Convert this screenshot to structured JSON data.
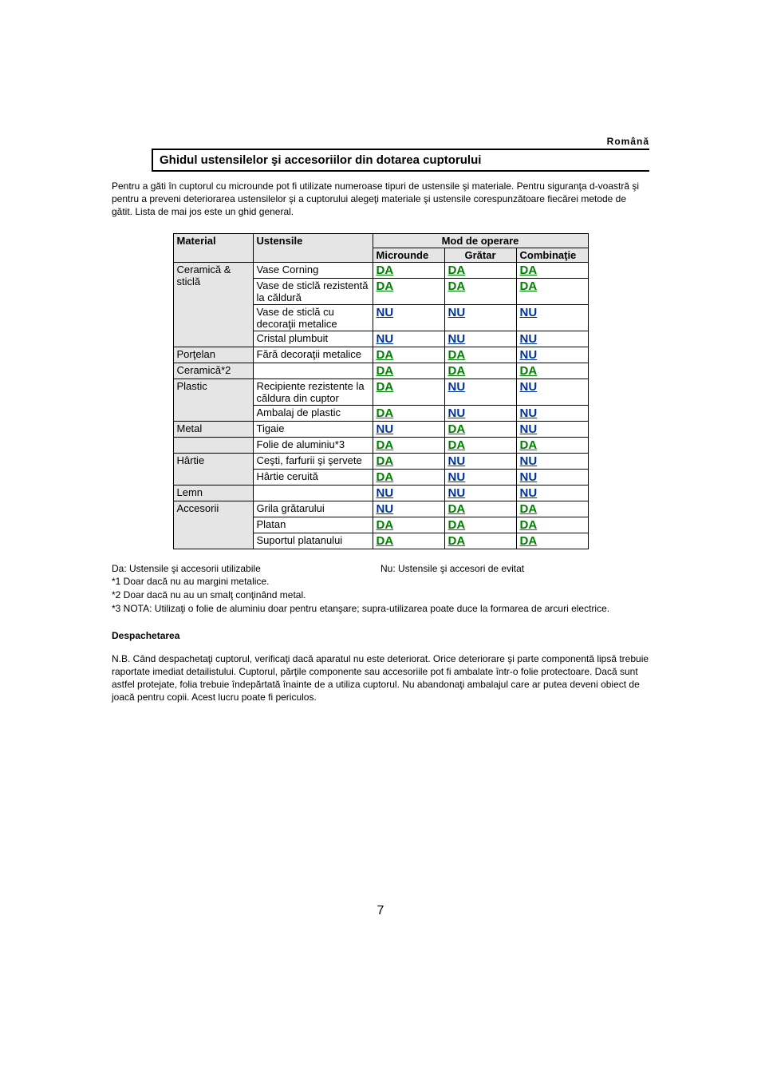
{
  "language": "Română",
  "title": "Ghidul ustensilelor şi accesoriilor din dotarea cuptorului",
  "intro": "Pentru a găti  în cuptorul cu microunde pot fi utilizate numeroase tipuri de ustensile şi materiale. Pentru siguranţa d-voastră şi pentru a preveni deteriorarea ustensilelor şi a cuptorului alegeţi materiale şi ustensile corespunzătoare fiecărei metode de gătit. Lista de mai jos este un ghid general.",
  "headers": {
    "material": "Material",
    "ustensile": "Ustensile",
    "mode": "Mod de operare",
    "c1": "Microunde",
    "c2": "Grătar",
    "c3": "Combinaţie"
  },
  "rows": [
    {
      "material": "Ceramică & sticlă",
      "span": 4,
      "items": [
        {
          "u": "Vase Corning",
          "v": [
            "DA",
            "DA",
            "DA"
          ]
        },
        {
          "u": "Vase de sticlă rezistentă la căldură",
          "v": [
            "DA",
            "DA",
            "DA"
          ]
        },
        {
          "u": "Vase de sticlă cu decoraţii metalice",
          "v": [
            "NU",
            "NU",
            "NU"
          ]
        },
        {
          "u": "Cristal plumbuit",
          "v": [
            "NU",
            "NU",
            "NU"
          ]
        }
      ]
    },
    {
      "material": "Porţelan",
      "span": 1,
      "items": [
        {
          "u": "Fără decoraţii metalice",
          "v": [
            "DA",
            "DA",
            "NU"
          ]
        }
      ]
    },
    {
      "material": "Ceramică*2",
      "span": 1,
      "items": [
        {
          "u": "",
          "v": [
            "DA",
            "DA",
            "DA"
          ]
        }
      ]
    },
    {
      "material": "Plastic",
      "span": 2,
      "items": [
        {
          "u": "Recipiente rezistente la căldura din cuptor",
          "v": [
            "DA",
            "NU",
            "NU"
          ]
        },
        {
          "u": "Ambalaj de plastic",
          "v": [
            "DA",
            "NU",
            "NU"
          ]
        }
      ]
    },
    {
      "material": "Metal",
      "span": 1,
      "items": [
        {
          "u": "Tigaie",
          "v": [
            "NU",
            "DA",
            "NU"
          ]
        }
      ]
    },
    {
      "material": "",
      "span": 1,
      "items": [
        {
          "u": "Folie de aluminiu*3",
          "v": [
            "DA",
            "DA",
            "DA"
          ]
        }
      ]
    },
    {
      "material": "Hârtie",
      "span": 2,
      "items": [
        {
          "u": "Ceşti, farfurii şi şervete",
          "v": [
            "DA",
            "NU",
            "NU"
          ]
        },
        {
          "u": "Hârtie ceruită",
          "v": [
            "DA",
            "NU",
            "NU"
          ]
        }
      ]
    },
    {
      "material": "Lemn",
      "span": 1,
      "items": [
        {
          "u": "",
          "v": [
            "NU",
            "NU",
            "NU"
          ]
        }
      ]
    },
    {
      "material": "Accesorii",
      "span": 3,
      "items": [
        {
          "u": "Grila grătarului",
          "v": [
            "NU",
            "DA",
            "DA"
          ]
        },
        {
          "u": "Platan",
          "v": [
            "DA",
            "DA",
            "DA"
          ]
        },
        {
          "u": "Suportul platanului",
          "v": [
            "DA",
            "DA",
            "DA"
          ]
        }
      ]
    }
  ],
  "legend": {
    "da": "Da: Ustensile şi accesorii utilizabile",
    "nu": "Nu: Ustensile şi  accesori de evitat",
    "n1": "*1 Doar dacă nu au margini metalice.",
    "n2": "*2 Doar dacă nu au un smalţ conţinând metal.",
    "n3": "*3 NOTA: Utilizaţi o folie de aluminiu doar pentru etanşare; supra-utilizarea poate duce la formarea de arcuri electrice."
  },
  "section_heading": "Despachetarea",
  "paragraph": "N.B. Când despachetaţi cuptorul, verificaţi dacă aparatul nu este deteriorat. Orice deteriorare şi parte componentă lipsă trebuie raportate imediat detailistului. Cuptorul, părţile componente sau accesoriile pot fi ambalate într-o folie protectoare. Dacă sunt astfel protejate, folia trebuie îndepărtată  înainte de a utiliza cuptorul. Nu abandonaţi ambalajul care ar putea deveni obiect de joacă  pentru copii. Acest lucru  poate fi periculos.",
  "page_number": "7",
  "colors": {
    "da": "#008000",
    "nu": "#003399",
    "header_bg": "#e5e5e5"
  }
}
